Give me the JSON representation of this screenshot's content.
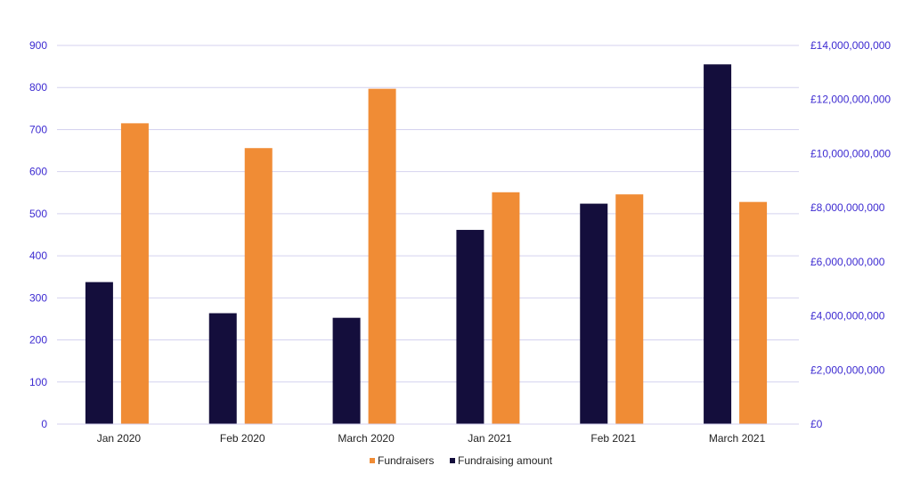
{
  "chart_data": {
    "type": "bar",
    "categories": [
      "Jan 2020",
      "Feb 2020",
      "March 2020",
      "Jan 2021",
      "Feb 2021",
      "March 2021"
    ],
    "series": [
      {
        "name": "Fundraising amount",
        "axis": "right",
        "color": "#140e3c",
        "values": [
          5250000000,
          4100000000,
          3930000000,
          7180000000,
          8150000000,
          13300000000
        ]
      },
      {
        "name": "Fundraisers",
        "axis": "left",
        "color": "#f08c35",
        "values": [
          715,
          656,
          797,
          551,
          546,
          528
        ]
      }
    ],
    "left_axis": {
      "range": [
        0,
        900
      ],
      "ticks": [
        "0",
        "100",
        "200",
        "300",
        "400",
        "500",
        "600",
        "700",
        "800",
        "900"
      ],
      "tick_color": "#3d2bd1"
    },
    "right_axis": {
      "range": [
        0,
        14000000000
      ],
      "ticks": [
        "£0",
        "£2,000,000,000",
        "£4,000,000,000",
        "£6,000,000,000",
        "£8,000,000,000",
        "£10,000,000,000",
        "£12,000,000,000",
        "£14,000,000,000"
      ],
      "tick_color": "#3d2bd1"
    },
    "grid": true,
    "grid_color": "#d4d2ef",
    "legend": {
      "placement": "bottom",
      "items": [
        "Fundraisers",
        "Fundraising amount"
      ]
    }
  }
}
